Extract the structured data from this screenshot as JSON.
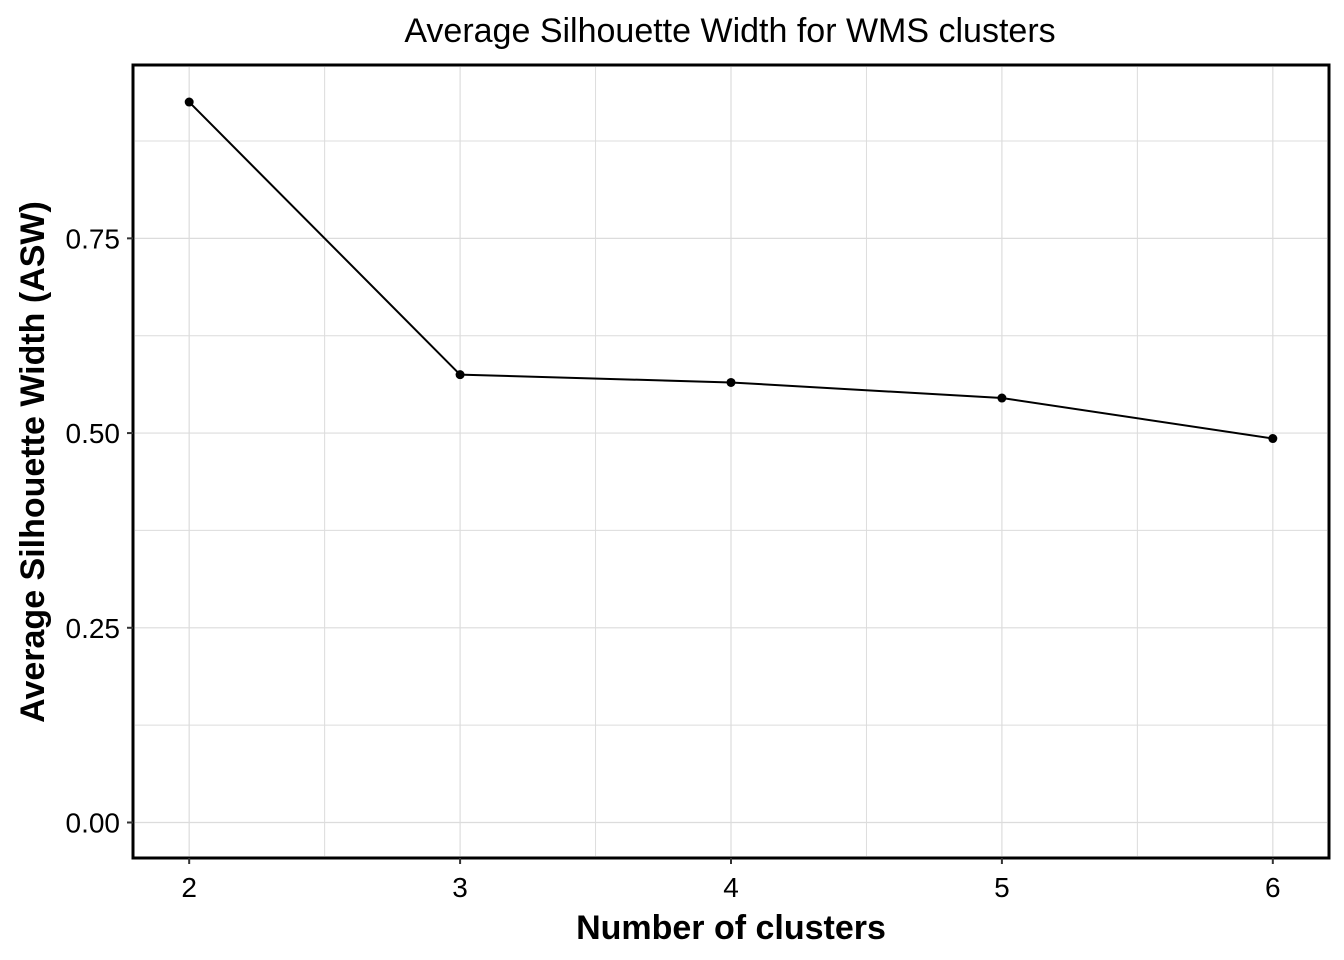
{
  "chart_data": {
    "type": "line",
    "title": "Average Silhouette Width for WMS clusters",
    "xlabel": "Number of clusters",
    "ylabel": "Average Silhouette Width (ASW)",
    "x": [
      2,
      3,
      4,
      5,
      6
    ],
    "series": [
      {
        "values": [
          0.925,
          0.575,
          0.565,
          0.545,
          0.493
        ]
      }
    ],
    "xlim": [
      1.8,
      6.2
    ],
    "ylim": [
      -0.043,
      0.97
    ],
    "xticks": [
      "2",
      "3",
      "4",
      "5",
      "6"
    ],
    "xtick_values": [
      2,
      3,
      4,
      5,
      6
    ],
    "yticks": [
      "0.00",
      "0.25",
      "0.50",
      "0.75"
    ],
    "ytick_values": [
      0,
      0.25,
      0.5,
      0.75
    ],
    "grid": true,
    "line_color": "#000000",
    "grid_color": "#dcdcdc"
  }
}
